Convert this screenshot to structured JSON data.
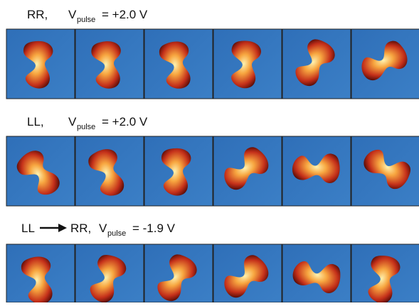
{
  "rows": [
    {
      "prefix": "RR,",
      "symbol": "V",
      "subscript": "pulse",
      "value": "= +2.0 V"
    },
    {
      "prefix": "LL,",
      "symbol": "V",
      "subscript": "pulse",
      "value": "= +2.0 V"
    },
    {
      "prefix": "LL",
      "target": "RR,",
      "symbol": "V",
      "subscript": "pulse",
      "value": "= -1.9 V"
    }
  ]
}
